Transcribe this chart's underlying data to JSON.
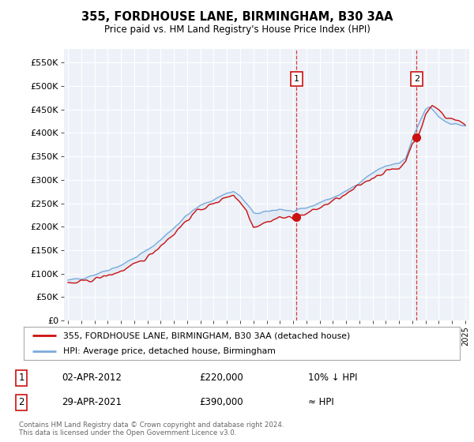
{
  "title": "355, FORDHOUSE LANE, BIRMINGHAM, B30 3AA",
  "subtitle": "Price paid vs. HM Land Registry's House Price Index (HPI)",
  "bg_color": "#ffffff",
  "plot_bg_color": "#eef2f8",
  "hpi_color": "#7aabdc",
  "hpi_fill_color": "#c8dcf0",
  "price_color": "#cc1111",
  "marker_color": "#cc1111",
  "ylim": [
    0,
    580000
  ],
  "yticks": [
    0,
    50000,
    100000,
    150000,
    200000,
    250000,
    300000,
    350000,
    400000,
    450000,
    500000,
    550000
  ],
  "ytick_labels": [
    "£0",
    "£50K",
    "£100K",
    "£150K",
    "£200K",
    "£250K",
    "£300K",
    "£350K",
    "£400K",
    "£450K",
    "£500K",
    "£550K"
  ],
  "sale1_date": "02-APR-2012",
  "sale1_price": 220000,
  "sale1_label": "1",
  "sale1_note": "10% ↓ HPI",
  "sale2_date": "29-APR-2021",
  "sale2_price": 390000,
  "sale2_label": "2",
  "sale2_note": "≈ HPI",
  "legend_line1": "355, FORDHOUSE LANE, BIRMINGHAM, B30 3AA (detached house)",
  "legend_line2": "HPI: Average price, detached house, Birmingham",
  "footnote": "Contains HM Land Registry data © Crown copyright and database right 2024.\nThis data is licensed under the Open Government Licence v3.0.",
  "sale1_x": 2012.25,
  "sale2_x": 2021.33,
  "xlim_left": 1994.7,
  "xlim_right": 2025.3
}
